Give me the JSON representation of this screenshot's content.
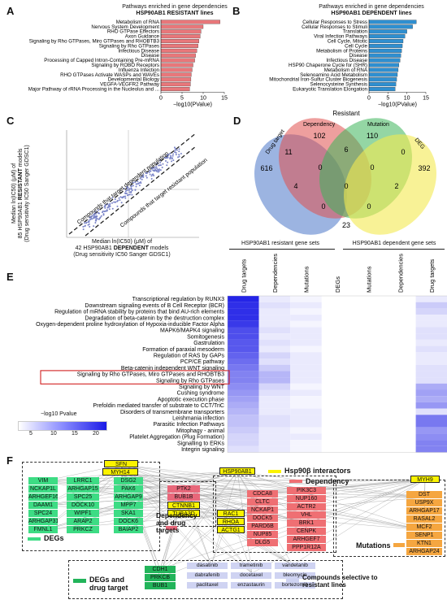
{
  "panels": {
    "A": "A",
    "B": "B",
    "C": "C",
    "D": "D",
    "E": "E",
    "F": "F"
  },
  "panel_a": {
    "title_line1": "Pathways enriched in gene dependencies",
    "title_line2": "HSP90AB1 RESISTANT lines",
    "color": "#e8777a",
    "xlabel": "−log10(PValue)",
    "xticks": [
      "0",
      "5",
      "10",
      "15"
    ],
    "terms": [
      {
        "label": "Metabolism of RNA",
        "value": 14.0
      },
      {
        "label": "Nervous System Development",
        "value": 10.0
      },
      {
        "label": "RHO GTPase Effectors",
        "value": 9.5
      },
      {
        "label": "Axon Guidance",
        "value": 9.3
      },
      {
        "label": "Signaling by Rho GTPases, Miro GTPases and RHOBTB3",
        "value": 9.0
      },
      {
        "label": "Signaling by Rho GTPases",
        "value": 8.8
      },
      {
        "label": "Infectious Disease",
        "value": 8.5
      },
      {
        "label": "Disease",
        "value": 8.2
      },
      {
        "label": "Processing of Capped Intron-Containing Pre-mRNA",
        "value": 8.0
      },
      {
        "label": "Signaling by ROBO Receptors",
        "value": 7.6
      },
      {
        "label": "Influenza Infection",
        "value": 7.4
      },
      {
        "label": "RHO GTPases Activate WASPs and WAVEs",
        "value": 7.2
      },
      {
        "label": "Developmental Biology",
        "value": 7.1
      },
      {
        "label": "VEGFA-VEGFR2 Pathway",
        "value": 7.0
      },
      {
        "label": "Major Pathway of rRNA Processing in the Nucleolus and ...",
        "value": 6.8
      }
    ]
  },
  "panel_b": {
    "title_line1": "Pathways enriched in gene dependencies",
    "title_line2": "HSP90AB1 DEPENDENT lines",
    "color": "#2f8fd0",
    "xlabel": "−log10(PValue)",
    "xticks": [
      "0",
      "5",
      "10",
      "15"
    ],
    "terms": [
      {
        "label": "Cellular Responses to Stress",
        "value": 12.5
      },
      {
        "label": "Cellular Responses to Stimuli",
        "value": 11.5
      },
      {
        "label": "Translation",
        "value": 10.0
      },
      {
        "label": "Viral Infection Pathways",
        "value": 9.5
      },
      {
        "label": "Cell Cycle, Mitotic",
        "value": 9.0
      },
      {
        "label": "Cell Cycle",
        "value": 8.8
      },
      {
        "label": "Metabolism of Proteins",
        "value": 8.6
      },
      {
        "label": "Disease",
        "value": 8.4
      },
      {
        "label": "Infectious Disease",
        "value": 8.2
      },
      {
        "label": "HSP90 Chaperone Cycle for (SHR)",
        "value": 7.9
      },
      {
        "label": "Metabolism of RNA",
        "value": 7.7
      },
      {
        "label": "Selenoamino Acid Metabolism",
        "value": 7.5
      },
      {
        "label": "Mitochondrial Iron-Sulfur Cluster Biogenesis",
        "value": 7.3
      },
      {
        "label": "Selenocysteine Synthesis",
        "value": 7.1
      },
      {
        "label": "Eukaryotic Translation Elongation",
        "value": 6.9
      }
    ]
  },
  "panel_c": {
    "ylabel_line1": "Median ln(IC50) (μM) of",
    "ylabel_line2_pre": "85 HSP90AB1 ",
    "ylabel_line2_bold": "RESISTANT",
    "ylabel_line2_post": " models",
    "ylabel_line3": "(Drug sensitivity IC50 Sanger GDSC1)",
    "xlabel_line1": "Median ln(IC50) (μM) of",
    "xlabel_line2_pre": "42 HSP90AB1 ",
    "xlabel_line2_bold": "DEPENDENT",
    "xlabel_line2_post": " models",
    "xlabel_line3": "(Drug sensitivity IC50 Sanger GDSC1)",
    "annot_upper": "Compounds that target dependent population",
    "annot_lower": "Compounds that target resistant population"
  },
  "panel_d": {
    "title": "Resistant",
    "sets": [
      "Drug target",
      "Dependency",
      "Mutation",
      "DEG"
    ],
    "counts": {
      "drug_only": "616",
      "dep_only": "102",
      "mut_only": "110",
      "deg_only": "392",
      "drug_dep": "11",
      "dep_mut": "6",
      "mut_deg": "0",
      "drug_deg": "0",
      "drug_mut": "4",
      "dep_deg": "2",
      "center": "0",
      "c1": "0",
      "c2": "0",
      "c3": "0",
      "bottom": "23"
    }
  },
  "panel_e": {
    "group_resistant": "HSP90AB1 resistant gene sets",
    "group_dependent": "HSP90AB1 dependent gene sets",
    "columns": [
      "Drug targets",
      "Dependencies",
      "Mutations",
      "DEGs",
      "Mutations",
      "Dependencies",
      "Drug targets"
    ],
    "rows": [
      "Transcriptional regulation by RUNX3",
      "Downstream signaling events of B Cell Receptor (BCR)",
      "Regulation of mRNA stability by proteins that bind AU-rich elements",
      "Degradation of beta-catenin by the destruction complex",
      "Oxygen-dependent proline hydroxylation of Hypoxia-inducible Factor Alpha",
      "MAPK6/MAPK4 signaling",
      "Somitogenesis",
      "Gastrulation",
      "Formation of paraxial mesoderm",
      "Regulation of RAS by GAPs",
      "PCP/CE pathway",
      "Beta-catenin independent WNT signaling",
      "Signaling by Rho GTPases, Miro GTPases and RHOBTB3",
      "Signaling by Rho GTPases",
      "Signaling by WNT",
      "Cushing syndrome",
      "Apoptotic execution phase",
      "Prefoldin mediated transfer of substrate to CCT/TriC",
      "Disorders of transmembrane transporters",
      "Leishmania infection",
      "Parasitic Infection Pathways",
      "Mitophagy - animal",
      "Platelet Aggregation (Plug Formation)",
      "Signalling to ERKs",
      "Integrin signaling"
    ],
    "values": [
      [
        21,
        2,
        1,
        0,
        0,
        0,
        2
      ],
      [
        20,
        3,
        2,
        0,
        0,
        0,
        5
      ],
      [
        20,
        2,
        1,
        0,
        0,
        0,
        4
      ],
      [
        20,
        2,
        2,
        0,
        0,
        0,
        2
      ],
      [
        19,
        2,
        1,
        0,
        0,
        0,
        2
      ],
      [
        17,
        3,
        2,
        0,
        0,
        0,
        3
      ],
      [
        17,
        2,
        2,
        0,
        0,
        0,
        3
      ],
      [
        16,
        3,
        2,
        0,
        0,
        0,
        2
      ],
      [
        16,
        2,
        1,
        0,
        0,
        0,
        3
      ],
      [
        15,
        4,
        2,
        0,
        0,
        0,
        2
      ],
      [
        14,
        3,
        2,
        0,
        0,
        0,
        2
      ],
      [
        13,
        5,
        2,
        0,
        0,
        0,
        3
      ],
      [
        12,
        7,
        2,
        0,
        0,
        0,
        3
      ],
      [
        12,
        7,
        2,
        0,
        0,
        0,
        3
      ],
      [
        11,
        4,
        1,
        0,
        0,
        0,
        8
      ],
      [
        10,
        3,
        2,
        0,
        0,
        0,
        9
      ],
      [
        9,
        2,
        1,
        0,
        0,
        0,
        8
      ],
      [
        8,
        2,
        1,
        0,
        0,
        0,
        10
      ],
      [
        7,
        2,
        2,
        0,
        0,
        0,
        3
      ],
      [
        6,
        3,
        2,
        0,
        0,
        0,
        13
      ],
      [
        6,
        3,
        2,
        0,
        0,
        0,
        13
      ],
      [
        5,
        2,
        1,
        0,
        0,
        0,
        10
      ],
      [
        4,
        2,
        2,
        0,
        0,
        0,
        11
      ],
      [
        4,
        2,
        1,
        0,
        0,
        0,
        12
      ],
      [
        3,
        2,
        1,
        0,
        0,
        0,
        12
      ]
    ],
    "legend_label": "−log10 Pvalue",
    "legend_ticks": [
      "5",
      "10",
      "15",
      "20"
    ],
    "highlight_rows": [
      12,
      13
    ]
  },
  "panel_f": {
    "sfn": "SFN",
    "myh14": "MYH14",
    "hsp90ab1": "HSP90AB1",
    "myh9": "MYH9",
    "legend_hsp": "Hsp90β interactors",
    "legend_dep": "Dependency",
    "legend_degs": "DEGs",
    "legend_dep_drug": "Dependency and drug targets",
    "legend_mut": "Mutations",
    "legend_deg_drug": "DEGs and drug target",
    "legend_compounds": "Compounds selective to resistant lines",
    "degs_col1": [
      "VIM",
      "NCKAP1L",
      "ARHGEF16",
      "DAAM1",
      "SPC24",
      "ARHGAP31",
      "FMNL1"
    ],
    "degs_col2": [
      "LRRC1",
      "ARHGAP15",
      "SPC25",
      "DOCK10",
      "WIPF1",
      "ARAP2",
      "PRKCZ"
    ],
    "degs_col3": [
      "DSG2",
      "PAK6",
      "ARHGAP9",
      "MPP7",
      "SKA1",
      "DOCK6",
      "BAIAP2"
    ],
    "dep_drug": [
      "PTK2",
      "BUB1B",
      "CTNNB1",
      "TUBA3D"
    ],
    "rac": [
      "RAC1",
      "RHOA",
      "ACTG1"
    ],
    "dep_col1": [
      "CDCA8",
      "CLTC",
      "NCKAP1",
      "DOCK5",
      "PARD6B",
      "NUP85",
      "DLG5"
    ],
    "dep_col2": [
      "PIK3C3",
      "NUP160",
      "ACTR2",
      "VHL",
      "BRK1",
      "CENPK",
      "ARHGEF7",
      "PPP1R12A"
    ],
    "mut": [
      "DST",
      "USP9X",
      "ARHGAP17",
      "RASAL2",
      "MCF2",
      "SENP1",
      "KTN1",
      "ARHGAP24"
    ],
    "deg_drug": [
      "CDH1",
      "PRKCB",
      "BUB1"
    ],
    "compounds": [
      "dasatinib",
      "trametinib",
      "vandetanib",
      "dabrafenib",
      "docetaxel",
      "bleomycin",
      "paclitaxel",
      "enzastaurin",
      "bortezomib"
    ]
  }
}
